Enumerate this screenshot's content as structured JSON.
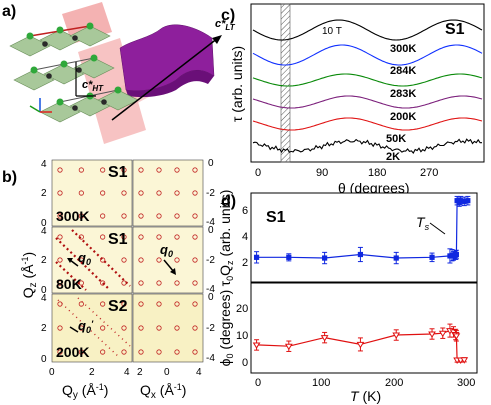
{
  "panels": {
    "a": {
      "label": "a)",
      "c_lt": "c*",
      "c_lt_sub": "LT",
      "c_ht": "c*",
      "c_ht_sub": "HT"
    },
    "b": {
      "label": "b)",
      "ylabel": "Q",
      "ylabel_sub": "z",
      "ylabel_unit": " (Å",
      "ylabel_unit2": ")",
      "xlabel_left": "Q",
      "xlabel_left_sub": "y",
      "xlabel_right": "Q",
      "xlabel_right_sub": "x",
      "xlabel_unit": " (Å",
      "xlabel_unit2": ")",
      "left_y_ticks": [
        "4",
        "2",
        "0",
        "4",
        "2",
        "0",
        "4",
        "2",
        "0"
      ],
      "right_y_ticks": [
        "0",
        "-2",
        "-4",
        "0",
        "-2",
        "-4",
        "0",
        "-2",
        "-4"
      ],
      "x_ticks_left": [
        "0",
        "2",
        "4"
      ],
      "x_ticks_right": [
        "2",
        "0",
        "4"
      ],
      "rows": [
        {
          "sample": "S1",
          "temp": "300K"
        },
        {
          "sample": "S1",
          "temp": "80K",
          "vec_left": "q",
          "vec_left_sub": "0",
          "vec_right": "q",
          "vec_right_sub": "0"
        },
        {
          "sample": "S2",
          "temp": "200K",
          "vec_left": "q",
          "vec_left_sub": "0",
          "vec_left_prime": "′"
        }
      ]
    },
    "c": {
      "label": "c)",
      "field": "10 T",
      "sample": "S1",
      "ylabel": "τ (arb. units)",
      "xlabel": "θ (degrees)",
      "x_ticks": [
        "0",
        "90",
        "180",
        "270"
      ],
      "curves": [
        {
          "label": "300K",
          "color": "#000000"
        },
        {
          "label": "284K",
          "color": "#1030ff"
        },
        {
          "label": "283K",
          "color": "#0a8a0a"
        },
        {
          "label": "200K",
          "color": "#7a1d7a"
        },
        {
          "label": "50K",
          "color": "#e01010"
        },
        {
          "label": "2K",
          "color": "#000000"
        }
      ]
    },
    "d": {
      "label": "d)",
      "sample": "S1",
      "ts": "T",
      "ts_sub": "s",
      "top_ylabel": "τ",
      "top_ylabel_sub": "0",
      "top_ylabel_z": "Q",
      "top_ylabel_zsub": "z",
      "top_ylabel_unit": " (arb. units)",
      "bottom_ylabel": "ϕ",
      "bottom_ylabel_sub": "0",
      "bottom_ylabel_unit": " (degrees)",
      "xlabel": "T",
      "xlabel_unit": " (K)",
      "x_ticks": [
        "0",
        "100",
        "200",
        "300"
      ],
      "top_y_ticks": [
        "2",
        "4",
        "6"
      ],
      "bottom_y_ticks": [
        "0",
        "10",
        "20"
      ],
      "top_color": "#1028e0",
      "bottom_color": "#e01010"
    }
  },
  "chart_data": [
    {
      "type": "line",
      "title": "",
      "xlabel": "T (K)",
      "ylabel": "τ0 Qz (arb. units)",
      "xlim": [
        0,
        310
      ],
      "ylim": [
        1,
        7
      ],
      "series": [
        {
          "x": [
            5,
            50,
            100,
            150,
            200,
            250,
            275,
            278,
            280,
            283,
            284,
            285,
            288,
            290,
            295,
            300
          ],
          "y": [
            2.6,
            2.6,
            2.55,
            2.8,
            2.55,
            2.6,
            2.7,
            2.75,
            2.7,
            2.75,
            2.8,
            6.6,
            6.5,
            6.6,
            6.55,
            6.6
          ],
          "err": [
            0.4,
            0.25,
            0.4,
            0.5,
            0.4,
            0.3,
            0.5,
            0.4,
            0.3,
            0.3,
            0.3,
            0.3,
            0.3,
            0.3,
            0.3,
            0.3
          ]
        }
      ]
    },
    {
      "type": "line",
      "title": "",
      "xlabel": "T (K)",
      "ylabel": "ϕ0 (degrees)",
      "xlim": [
        0,
        310
      ],
      "ylim": [
        -3,
        30
      ],
      "series": [
        {
          "x": [
            5,
            50,
            100,
            150,
            200,
            250,
            265,
            275,
            280,
            283,
            284,
            285,
            290,
            295
          ],
          "y": [
            7,
            6.5,
            9.8,
            7.2,
            10.8,
            11.2,
            11.5,
            12.5,
            12,
            11,
            10.5,
            1.2,
            1.2,
            1.3
          ],
          "err": [
            2,
            2,
            2,
            2.5,
            2,
            2,
            2,
            2.5,
            2,
            2,
            2,
            0.8,
            0.8,
            0.8
          ]
        }
      ]
    }
  ]
}
